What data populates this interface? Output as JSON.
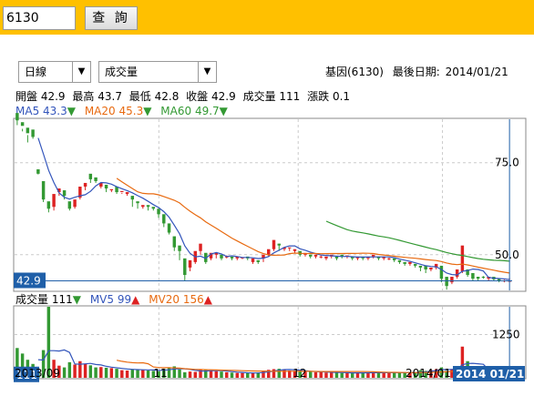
{
  "search": {
    "value": "6130",
    "button_label": "查 詢"
  },
  "period_select": {
    "value": "日線",
    "arrow": "▼"
  },
  "indicator_select": {
    "value": "成交量",
    "arrow": "▼"
  },
  "stock": {
    "name_code": "基因(6130)",
    "last_date_label": "最後日期:",
    "last_date": "2014/01/21"
  },
  "quote": {
    "open_label": "開盤",
    "open": "42.9",
    "high_label": "最高",
    "high": "43.7",
    "low_label": "最低",
    "low": "42.8",
    "close_label": "收盤",
    "close": "42.9",
    "volume_label": "成交量",
    "volume": "111",
    "change_label": "漲跌",
    "change": "0.1"
  },
  "ma_legend": [
    {
      "label": "MA5",
      "value": "43.3",
      "dir": "▼",
      "color": "#3355bb"
    },
    {
      "label": "MA20",
      "value": "45.3",
      "dir": "▼",
      "color": "#e86a10"
    },
    {
      "label": "MA60",
      "value": "49.7",
      "dir": "▼",
      "color": "#339933"
    }
  ],
  "vol_legend": [
    {
      "label": "成交量",
      "value": "111",
      "dir": "▼",
      "color": "#000000",
      "dir_color": "#339933"
    },
    {
      "label": "MV5",
      "value": "99",
      "dir": "▲",
      "color": "#3355bb",
      "dir_color": "#dd2222"
    },
    {
      "label": "MV20",
      "value": "156",
      "dir": "▲",
      "color": "#e86a10",
      "dir_color": "#dd2222"
    }
  ],
  "colors": {
    "up": "#dd2222",
    "down": "#339933",
    "marker": "#1f5fa8",
    "ma5": "#3355bb",
    "ma20": "#e86a10",
    "ma60": "#339933"
  },
  "chart_data": {
    "type": "candlestick",
    "price_axis_ticks": [
      "75.0",
      "50.0"
    ],
    "volume_axis_ticks": [
      "1250"
    ],
    "current_price_label": "42.9",
    "current_volume_label": "111",
    "x_tick_labels": [
      "2013/09",
      "11",
      "12",
      "2014/01"
    ],
    "cursor_date_label": "2014 01/21",
    "price_range": [
      40.3,
      86.8
    ],
    "volume_range": [
      0,
      2050
    ],
    "candles": [
      [
        88.5,
        86.5,
        85.2,
        87.8,
        860
      ],
      [
        86.0,
        85.0,
        83.5,
        84.2,
        700
      ],
      [
        84.5,
        83.0,
        80.5,
        82.5,
        520
      ],
      [
        84.0,
        82.0,
        81.5,
        83.5,
        400
      ],
      [
        73.2,
        72.0,
        71.8,
        72.2,
        140
      ],
      [
        70.0,
        65.0,
        64.3,
        65.5,
        800
      ],
      [
        64.5,
        62.5,
        61.5,
        63.5,
        2050
      ],
      [
        63.0,
        66.5,
        62.0,
        66.2,
        520
      ],
      [
        67.0,
        68.0,
        66.0,
        67.7,
        350
      ],
      [
        67.5,
        66.0,
        65.0,
        66.7,
        300
      ],
      [
        64.5,
        62.5,
        62.0,
        63.0,
        450
      ],
      [
        63.0,
        65.0,
        62.5,
        64.5,
        380
      ],
      [
        65.5,
        68.5,
        65.0,
        68.0,
        480
      ],
      [
        68.5,
        69.5,
        67.5,
        69.0,
        400
      ],
      [
        72.0,
        70.5,
        69.5,
        71.5,
        360
      ],
      [
        71.0,
        70.0,
        69.5,
        70.5,
        300
      ],
      [
        68.5,
        69.5,
        68.0,
        69.0,
        310
      ],
      [
        69.0,
        68.0,
        67.0,
        68.5,
        290
      ],
      [
        67.5,
        67.8,
        67.0,
        67.6,
        280
      ],
      [
        68.5,
        67.0,
        66.5,
        67.3,
        260
      ],
      [
        67.0,
        67.3,
        66.5,
        66.8,
        220
      ],
      [
        66.5,
        67.0,
        66.0,
        66.5,
        210
      ],
      [
        66.0,
        65.0,
        63.0,
        65.5,
        250
      ],
      [
        64.5,
        64.0,
        62.5,
        64.2,
        240
      ],
      [
        63.0,
        63.5,
        62.5,
        63.2,
        230
      ],
      [
        63.5,
        63.0,
        62.0,
        63.3,
        210
      ],
      [
        63.0,
        62.5,
        62.0,
        62.8,
        200
      ],
      [
        62.5,
        61.0,
        60.0,
        61.5,
        190
      ],
      [
        61.0,
        58.5,
        57.5,
        59.0,
        260
      ],
      [
        58.5,
        56.0,
        55.5,
        56.5,
        300
      ],
      [
        55.0,
        52.0,
        51.0,
        53.0,
        330
      ],
      [
        52.5,
        51.0,
        48.5,
        51.5,
        240
      ],
      [
        49.0,
        44.5,
        43.0,
        45.0,
        160
      ],
      [
        46.5,
        48.5,
        45.5,
        48.0,
        180
      ],
      [
        48.0,
        51.0,
        47.5,
        50.5,
        170
      ],
      [
        51.0,
        53.0,
        50.0,
        52.5,
        230
      ],
      [
        50.5,
        48.0,
        47.5,
        48.5,
        230
      ],
      [
        49.0,
        50.5,
        48.5,
        50.0,
        210
      ],
      [
        50.0,
        50.5,
        49.0,
        50.3,
        190
      ],
      [
        50.0,
        49.0,
        48.5,
        49.5,
        180
      ],
      [
        49.5,
        49.5,
        49.0,
        49.8,
        160
      ],
      [
        49.5,
        49.0,
        48.5,
        49.3,
        150
      ],
      [
        49.0,
        49.5,
        48.5,
        49.3,
        140
      ],
      [
        49.0,
        49.3,
        48.8,
        49.2,
        140
      ],
      [
        49.5,
        49.0,
        48.5,
        49.2,
        130
      ],
      [
        48.0,
        49.0,
        47.5,
        48.5,
        140
      ],
      [
        48.5,
        48.0,
        47.5,
        48.2,
        150
      ],
      [
        49.0,
        50.0,
        48.0,
        49.5,
        200
      ],
      [
        50.0,
        51.5,
        49.5,
        51.0,
        230
      ],
      [
        51.5,
        54.0,
        51.0,
        53.5,
        250
      ],
      [
        53.0,
        52.5,
        51.0,
        53.0,
        260
      ],
      [
        51.5,
        52.0,
        51.0,
        51.5,
        240
      ],
      [
        52.0,
        52.0,
        51.0,
        51.8,
        210
      ],
      [
        51.0,
        51.5,
        50.5,
        51.2,
        200
      ],
      [
        51.0,
        50.0,
        49.5,
        50.5,
        190
      ],
      [
        50.0,
        50.5,
        49.5,
        50.2,
        180
      ],
      [
        50.0,
        49.5,
        49.0,
        49.8,
        170
      ],
      [
        49.5,
        50.0,
        49.0,
        49.7,
        160
      ],
      [
        49.5,
        49.5,
        49.0,
        49.8,
        170
      ],
      [
        49.0,
        49.5,
        48.5,
        49.2,
        150
      ],
      [
        49.5,
        50.0,
        49.0,
        49.7,
        150
      ],
      [
        49.5,
        49.0,
        48.5,
        49.3,
        150
      ],
      [
        50.0,
        49.5,
        49.0,
        49.7,
        140
      ],
      [
        49.5,
        49.8,
        49.0,
        49.5,
        140
      ],
      [
        49.5,
        49.0,
        48.5,
        49.3,
        130
      ],
      [
        49.0,
        49.5,
        48.5,
        49.2,
        150
      ],
      [
        49.5,
        49.0,
        48.5,
        49.3,
        150
      ],
      [
        49.0,
        49.5,
        48.5,
        49.2,
        150
      ],
      [
        49.5,
        50.0,
        49.0,
        49.7,
        150
      ],
      [
        49.5,
        49.0,
        48.5,
        49.3,
        150
      ],
      [
        49.0,
        49.5,
        48.5,
        49.2,
        140
      ],
      [
        49.0,
        49.0,
        48.5,
        49.2,
        150
      ],
      [
        49.0,
        48.5,
        48.0,
        48.7,
        160
      ],
      [
        48.5,
        48.0,
        47.5,
        48.2,
        150
      ],
      [
        48.0,
        47.5,
        47.0,
        47.8,
        150
      ],
      [
        47.5,
        48.0,
        47.0,
        47.7,
        140
      ],
      [
        47.5,
        47.0,
        46.5,
        47.2,
        150
      ],
      [
        47.0,
        46.5,
        45.5,
        46.8,
        220
      ],
      [
        47.0,
        46.0,
        45.0,
        46.5,
        200
      ],
      [
        46.0,
        46.5,
        45.5,
        46.2,
        220
      ],
      [
        46.5,
        47.5,
        46.0,
        47.0,
        250
      ],
      [
        47.0,
        43.5,
        42.5,
        44.0,
        300
      ],
      [
        44.0,
        41.5,
        40.5,
        42.0,
        200
      ],
      [
        42.5,
        44.0,
        42.0,
        43.5,
        250
      ],
      [
        44.0,
        46.0,
        43.5,
        45.5,
        230
      ],
      [
        45.5,
        52.5,
        45.0,
        52.0,
        900
      ],
      [
        46.0,
        44.5,
        44.0,
        45.5,
        480
      ],
      [
        45.0,
        43.5,
        43.0,
        44.0,
        230
      ],
      [
        44.0,
        43.5,
        43.0,
        44.0,
        180
      ],
      [
        44.0,
        43.8,
        43.5,
        44.2,
        150
      ],
      [
        43.5,
        44.0,
        43.0,
        43.8,
        130
      ],
      [
        44.0,
        43.3,
        43.0,
        43.8,
        120
      ],
      [
        43.5,
        43.0,
        42.5,
        43.5,
        115
      ],
      [
        43.0,
        43.0,
        42.5,
        43.2,
        110
      ],
      [
        42.8,
        42.9,
        42.8,
        43.7,
        111
      ]
    ]
  }
}
